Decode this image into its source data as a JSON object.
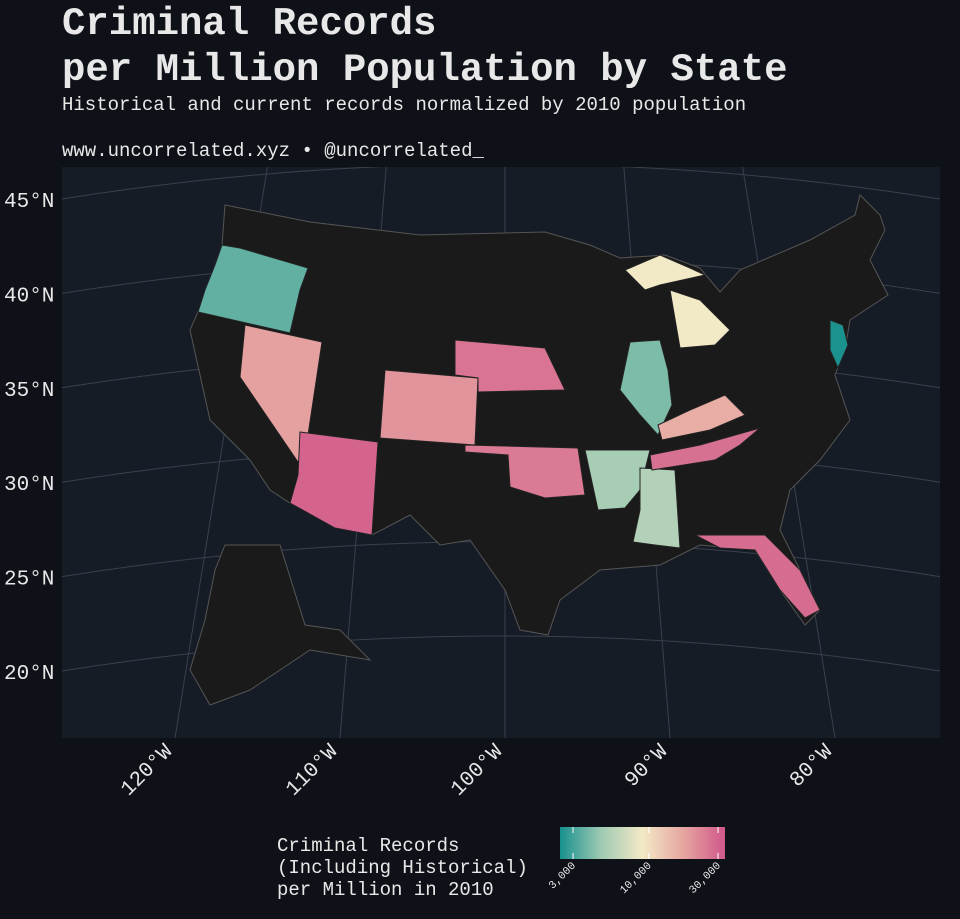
{
  "chart_data": {
    "type": "choropleth",
    "title": [
      "Criminal Records",
      "per Million Population by State"
    ],
    "subtitle": "Historical and current records normalized by 2010 population",
    "caption": "www.uncorrelated.xyz • @uncorrelated_",
    "yticks": [
      {
        "value": 45,
        "label": "45°N"
      },
      {
        "value": 40,
        "label": "40°N"
      },
      {
        "value": 35,
        "label": "35°N"
      },
      {
        "value": 30,
        "label": "30°N"
      },
      {
        "value": 25,
        "label": "25°N"
      },
      {
        "value": 20,
        "label": "20°N"
      }
    ],
    "xticks": [
      {
        "value": -120,
        "label": "120°W"
      },
      {
        "value": -110,
        "label": "110°W"
      },
      {
        "value": -100,
        "label": "100°W"
      },
      {
        "value": -90,
        "label": "90°W"
      },
      {
        "value": -80,
        "label": "80°W"
      }
    ],
    "values": [
      3500,
      18000,
      30000,
      20000,
      26000,
      25000,
      5000,
      5500,
      4000,
      9000,
      9000,
      16000,
      27000,
      28000,
      2500
    ],
    "legend_title": [
      "Criminal Records",
      "(Including Historical)",
      "per Million in 2010"
    ],
    "color_scale": "log",
    "colorlim": [
      2440,
      33500
    ],
    "colorticks": [
      {
        "value": 3000,
        "label": "3,000"
      },
      {
        "value": 10000,
        "label": "10,000"
      },
      {
        "value": 30000,
        "label": "30,000"
      }
    ],
    "colors": [
      "#17908e",
      "#9fcab3",
      "#f3e9c6",
      "#e6a5a0",
      "#d0578a"
    ]
  }
}
